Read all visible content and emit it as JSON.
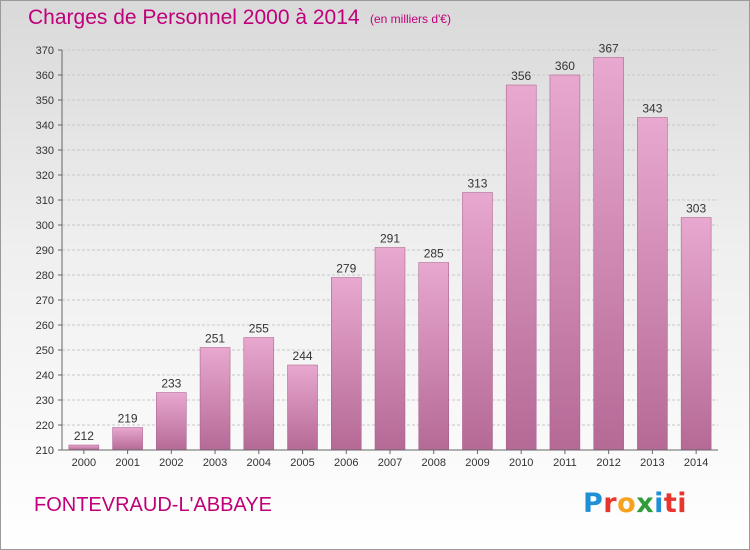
{
  "header": {
    "title": "Charges de Personnel 2000 à 2014",
    "subtitle": "(en milliers d'€)"
  },
  "footer": {
    "commune": "FONTEVRAUD-L'ABBAYE",
    "brand_letters": [
      "P",
      "r",
      "o",
      "x",
      "i",
      "ti"
    ]
  },
  "colors": {
    "title": "#c0007a",
    "bar_top": "#e8a8cf",
    "bar_bottom": "#b56a96"
  },
  "chart_data": {
    "type": "bar",
    "title": "Charges de Personnel 2000 à 2014",
    "subtitle": "(en milliers d'€)",
    "categories": [
      "2000",
      "2001",
      "2002",
      "2003",
      "2004",
      "2005",
      "2006",
      "2007",
      "2008",
      "2009",
      "2010",
      "2011",
      "2012",
      "2013",
      "2014"
    ],
    "values": [
      212,
      219,
      233,
      251,
      255,
      244,
      279,
      291,
      285,
      313,
      356,
      360,
      367,
      343,
      303
    ],
    "ylim": [
      210,
      370
    ],
    "yticks": [
      210,
      220,
      230,
      240,
      250,
      260,
      270,
      280,
      290,
      300,
      310,
      320,
      330,
      340,
      350,
      360,
      370
    ],
    "grid": true
  }
}
